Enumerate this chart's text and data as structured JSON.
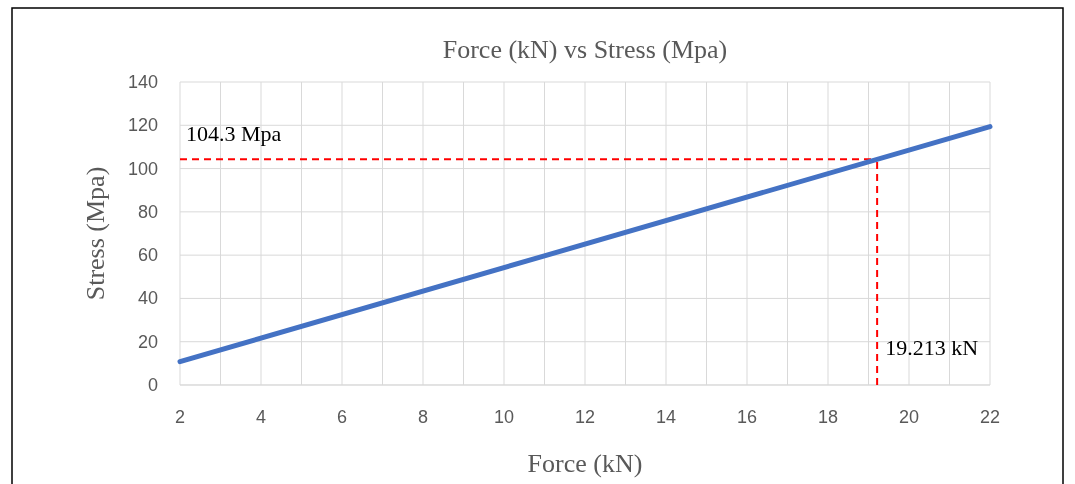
{
  "chart_data": {
    "type": "line",
    "title": "Force (kN) vs Stress (Mpa)",
    "xlabel": "Force (kN)",
    "ylabel": "Stress (Mpa)",
    "series": [
      {
        "color": "#4472c4",
        "x": [
          2,
          22
        ],
        "values": [
          10.8,
          119.4
        ]
      }
    ],
    "xlim": [
      2,
      22
    ],
    "xticks": [
      2,
      {
        "value": 3,
        "label": null
      },
      4,
      {
        "value": 5,
        "label": null
      },
      6,
      {
        "value": 7,
        "label": null
      },
      8,
      {
        "value": 9,
        "label": null
      },
      10,
      {
        "value": 11,
        "label": null
      },
      12,
      {
        "value": 13,
        "label": null
      },
      14,
      {
        "value": 15,
        "label": null
      },
      16,
      {
        "value": 17,
        "label": null
      },
      18,
      {
        "value": 19,
        "label": null
      },
      20,
      {
        "value": 21,
        "label": null
      },
      22
    ],
    "ylim": [
      0,
      140
    ],
    "yticks": [
      0,
      20,
      40,
      60,
      80,
      100,
      120,
      140
    ],
    "grid": true,
    "marker": "none",
    "line_style": "solid",
    "ref_lines": [
      {
        "axis": "y",
        "value": 104.3,
        "label": "104.3 Mpa",
        "color": "#ff0000",
        "line_style": "dashed"
      },
      {
        "axis": "x",
        "value": 19.213,
        "label": "19.213 kN",
        "color": "#ff0000",
        "line_style": "dashed"
      }
    ]
  }
}
